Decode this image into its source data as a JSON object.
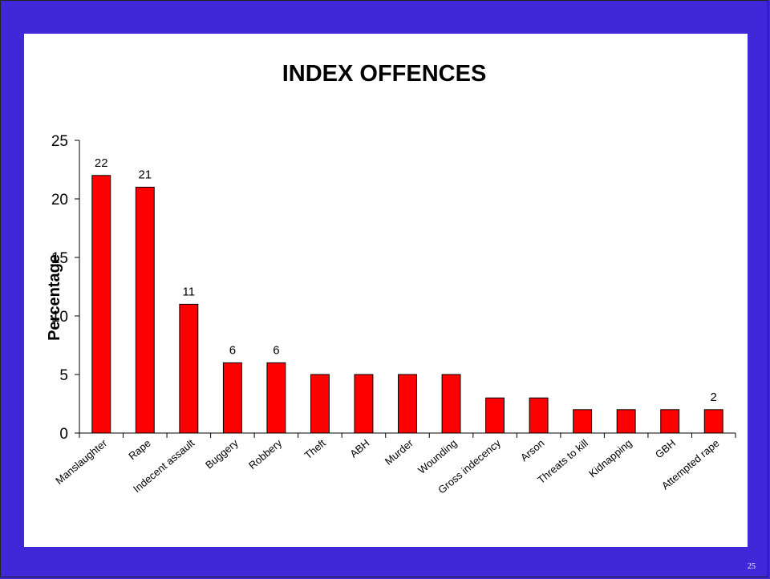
{
  "slide": {
    "page_number": "25"
  },
  "colors": {
    "background": "#4028d8",
    "panel": "#ffffff",
    "bar_fill": "#ff0000",
    "bar_stroke": "#000000"
  },
  "chart_data": {
    "type": "bar",
    "title": "INDEX OFFENCES",
    "xlabel": "",
    "ylabel": "Percentage",
    "categories": [
      "Manslaughter",
      "Rape",
      "Indecent assault",
      "Buggery",
      "Robbery",
      "Theft",
      "ABH",
      "Murder",
      "Wounding",
      "Gross indecency",
      "Arson",
      "Threats to kill",
      "Kidnapping",
      "GBH",
      "Attempted rape"
    ],
    "values": [
      22,
      21,
      11,
      6,
      6,
      5,
      5,
      5,
      5,
      3,
      3,
      2,
      2,
      2,
      2
    ],
    "data_labels": [
      "22",
      "21",
      "11",
      "6",
      "6",
      "",
      "",
      "",
      "",
      "",
      "",
      "",
      "",
      "",
      "2"
    ],
    "ylim": [
      0,
      25
    ],
    "yticks": [
      0,
      5,
      10,
      15,
      20,
      25
    ],
    "grid": false,
    "legend": "none"
  }
}
